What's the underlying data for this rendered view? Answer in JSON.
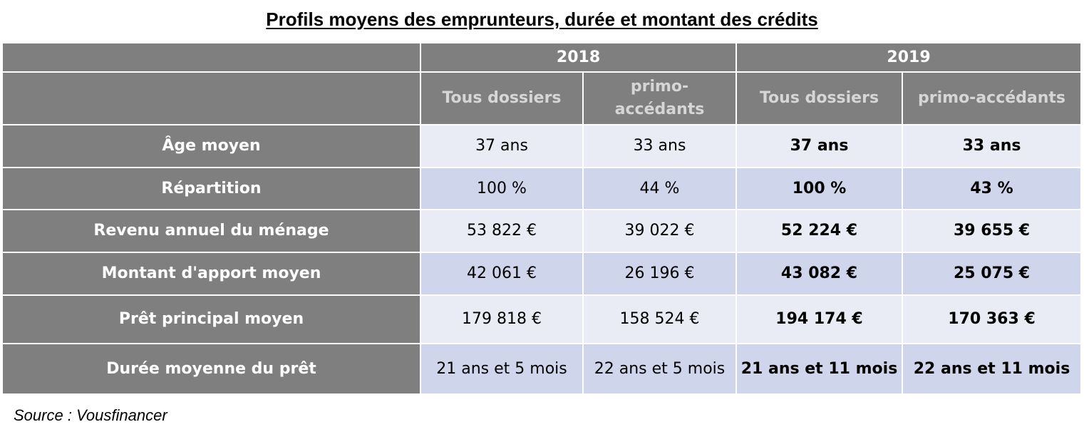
{
  "title": "Profils moyens des emprunteurs, durée et montant des crédits",
  "years": [
    "2018",
    "2019"
  ],
  "subheaders": [
    "Tous dossiers",
    "primo-accédants",
    "Tous dossiers",
    "primo-accédants"
  ],
  "rows": [
    {
      "label": "Âge moyen",
      "values": [
        "37 ans",
        "33 ans",
        "37 ans",
        "33 ans"
      ]
    },
    {
      "label": "Répartition",
      "values": [
        "100 %",
        "44 %",
        "100 %",
        "43 %"
      ]
    },
    {
      "label": "Revenu annuel du ménage",
      "values": [
        "53 822 €",
        "39 022 €",
        "52 224 €",
        "39 655 €"
      ]
    },
    {
      "label": "Montant d'apport moyen",
      "values": [
        "42 061 €",
        "26 196 €",
        "43 082 €",
        "25 075 €"
      ]
    },
    {
      "label": "Prêt principal moyen",
      "values": [
        "179 818 €",
        "158 524 €",
        "194 174 €",
        "170 363 €"
      ]
    },
    {
      "label": "Durée moyenne du prêt",
      "values": [
        "21 ans et 5 mois",
        "22 ans et 5 mois",
        "21 ans et 11 mois",
        "22 ans et 11 mois"
      ]
    }
  ],
  "source": "Source : Vousfinancer",
  "colors": {
    "header_bg": "#7f7f7f",
    "header_text": "#ffffff",
    "subheader_text": "#d6d6d6",
    "row_light": "#e9ebf5",
    "row_shade": "#cfd5ea"
  }
}
